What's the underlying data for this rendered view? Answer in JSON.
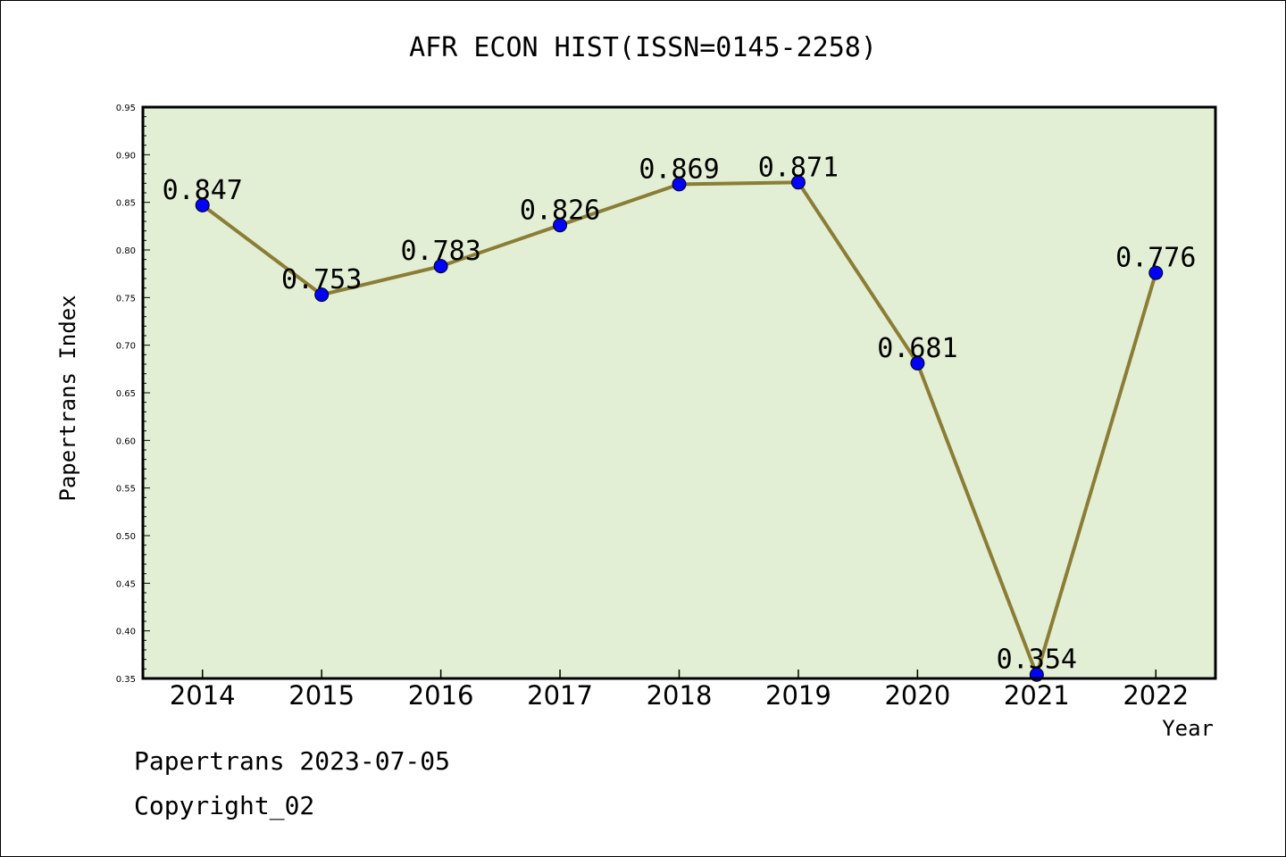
{
  "chart_data": {
    "type": "line",
    "title": "AFR ECON HIST(ISSN=0145-2258)",
    "xlabel": "Year",
    "ylabel": "Papertrans Index",
    "categories": [
      "2014",
      "2015",
      "2016",
      "2017",
      "2018",
      "2019",
      "2020",
      "2021",
      "2022"
    ],
    "series": [
      {
        "values": [
          0.847,
          0.753,
          0.783,
          0.826,
          0.869,
          0.871,
          0.681,
          0.354,
          0.776
        ],
        "labels": [
          "0.847",
          "0.753",
          "0.783",
          "0.826",
          "0.869",
          "0.871",
          "0.681",
          "0.354",
          "0.776"
        ]
      }
    ],
    "ylim": [
      0.35,
      0.95
    ],
    "yticks": [
      "0.35",
      "0.40",
      "0.45",
      "0.50",
      "0.55",
      "0.60",
      "0.65",
      "0.70",
      "0.75",
      "0.80",
      "0.85",
      "0.90",
      "0.95"
    ],
    "grid": false,
    "colors": {
      "plot_background": "#e2efd5",
      "line": "#8b7d35",
      "marker": "#0000ff"
    }
  },
  "footer": {
    "line1": "Papertrans 2023-07-05",
    "line2": "Copyright_02"
  }
}
